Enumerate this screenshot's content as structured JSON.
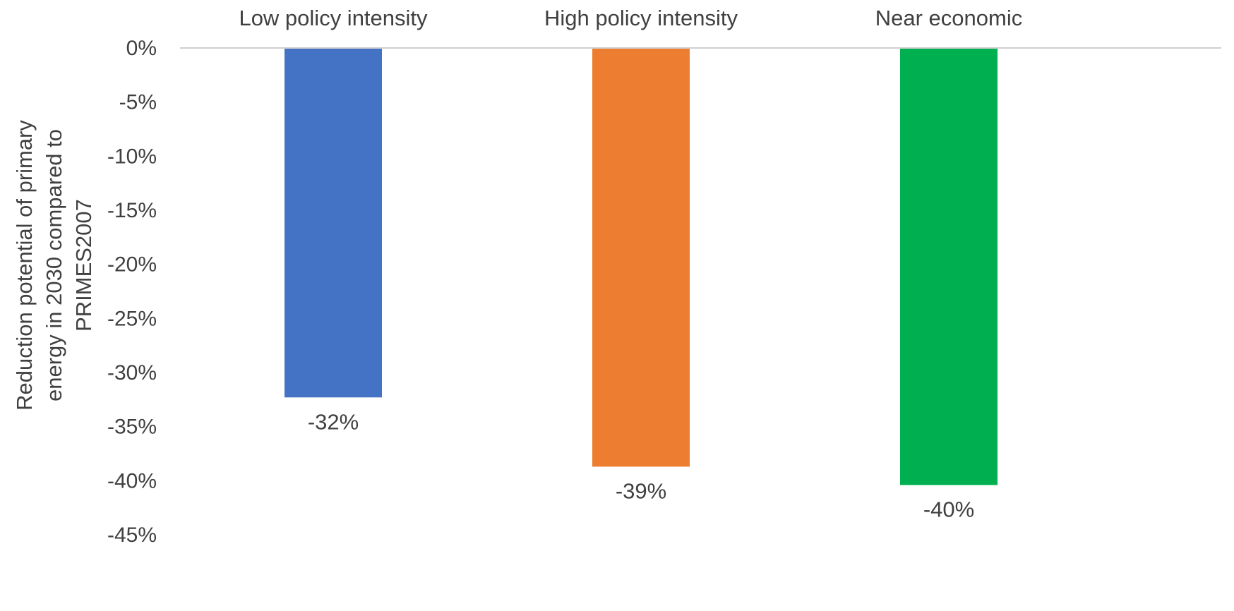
{
  "chart_data": {
    "type": "bar",
    "title": "",
    "xlabel": "",
    "ylabel": [
      "Reduction potential of primary",
      "energy in 2030 compared to",
      "PRIMES2007"
    ],
    "categories": [
      "Low policy intensity",
      "High policy intensity",
      "Near economic"
    ],
    "values": [
      -32.3,
      -38.7,
      -40.4
    ],
    "data_labels": [
      "-32%",
      "-39%",
      "-40%"
    ],
    "bar_colors": [
      "#4472C4",
      "#ED7D31",
      "#00B050"
    ],
    "ylim": [
      -45,
      0
    ],
    "yticks": [
      0,
      -5,
      -10,
      -15,
      -20,
      -25,
      -30,
      -35,
      -40,
      -45
    ],
    "ytick_labels": [
      "0%",
      "-5%",
      "-10%",
      "-15%",
      "-20%",
      "-25%",
      "-30%",
      "-35%",
      "-40%",
      "-45%"
    ],
    "category_axis_position": "top",
    "grid": false,
    "legend": "none"
  }
}
